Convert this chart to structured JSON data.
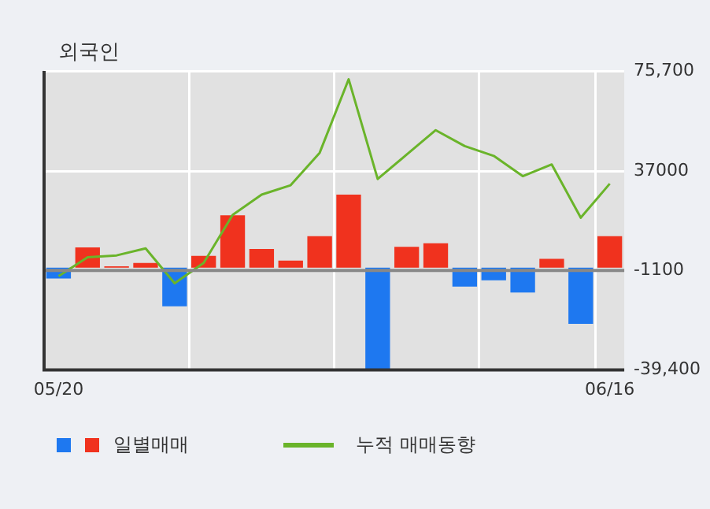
{
  "chart_data": {
    "type": "bar",
    "title": "외국인",
    "categories": [
      "05/20",
      null,
      null,
      null,
      null,
      null,
      null,
      null,
      null,
      null,
      null,
      null,
      null,
      null,
      null,
      null,
      null,
      null,
      null,
      "06/16"
    ],
    "ref_lines": [
      {
        "axis": "y",
        "value": -1100,
        "color": "#888888"
      }
    ],
    "series": [
      {
        "name": "일별매매",
        "colors": [
          "#1e78f0",
          "#f0321e",
          "#f0321e",
          "#f0321e",
          "#1e78f0",
          "#f0321e",
          "#f0321e",
          "#f0321e",
          "#f0321e",
          "#f0321e",
          "#f0321e",
          "#1e78f0",
          "#f0321e",
          "#f0321e",
          "#1e78f0",
          "#1e78f0",
          "#1e78f0",
          "#f0321e",
          "#1e78f0",
          "#f0321e"
        ],
        "values": [
          -4200,
          7800,
          500,
          1800,
          -14900,
          4500,
          20100,
          7200,
          2700,
          12100,
          28100,
          -39400,
          8000,
          9400,
          -7300,
          -4900,
          -9600,
          3400,
          -21600,
          12100
        ]
      },
      {
        "name": "누적 매매동향",
        "type": "line",
        "color": "#6ab42a",
        "values": [
          -3300,
          4000,
          4700,
          7400,
          -6000,
          1800,
          20300,
          28100,
          31700,
          44200,
          72500,
          34100,
          43500,
          52900,
          46800,
          43000,
          35200,
          39700,
          19200,
          32300
        ]
      }
    ],
    "ylim": [
      -39400,
      75700
    ],
    "yticks": [
      {
        "value": 75700,
        "label": "75,700"
      },
      37000,
      {
        "value": -1100,
        "label": "-1100"
      },
      {
        "value": -39400,
        "label": "-39,400"
      }
    ],
    "grid": true,
    "legend": "bottom",
    "marker": "none",
    "line_style": "solid"
  }
}
